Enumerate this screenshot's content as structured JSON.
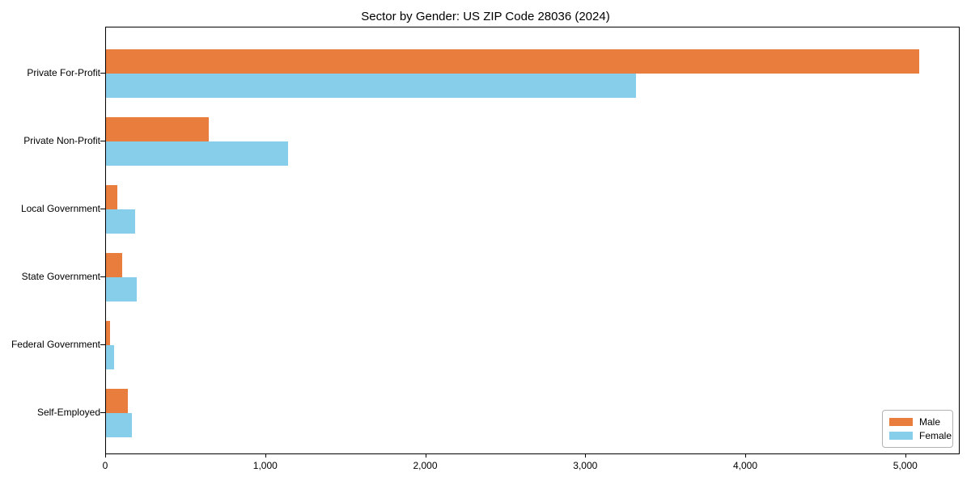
{
  "chart_data": {
    "type": "bar",
    "orientation": "horizontal",
    "title": "Sector by Gender: US ZIP Code 28036 (2024)",
    "categories": [
      "Private For-Profit",
      "Private Non-Profit",
      "Local Government",
      "State Government",
      "Federal Government",
      "Self-Employed"
    ],
    "series": [
      {
        "name": "Male",
        "color": "#E87D3E",
        "values": [
          5080,
          640,
          70,
          100,
          25,
          135
        ]
      },
      {
        "name": "Female",
        "color": "#87CEEB",
        "values": [
          3310,
          1140,
          180,
          190,
          50,
          160
        ]
      }
    ],
    "xlim": [
      0,
      5340
    ],
    "x_ticks": [
      0,
      1000,
      2000,
      3000,
      4000,
      5000
    ],
    "x_tick_labels": [
      "0",
      "1,000",
      "2,000",
      "3,000",
      "4,000",
      "5,000"
    ],
    "grid": false,
    "legend": {
      "position": "lower-right",
      "entries": [
        "Male",
        "Female"
      ]
    },
    "axis_color": "#000000",
    "background_color": "#ffffff"
  }
}
